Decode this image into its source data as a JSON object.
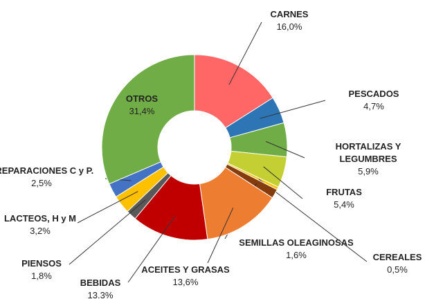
{
  "chart_data": {
    "type": "donut",
    "categories": [
      "CARNES",
      "PESCADOS",
      "HORTALIZAS Y LEGUMBRES",
      "FRUTAS",
      "CEREALES",
      "SEMILLAS OLEAGINOSAS",
      "ACEITES Y GRASAS",
      "BEBIDAS",
      "PIENSOS",
      "LACTEOS, H y M",
      "PREPARACIONES C y P.",
      "OTROS"
    ],
    "values": [
      16.0,
      4.7,
      5.9,
      5.4,
      0.5,
      1.6,
      13.6,
      13.3,
      1.8,
      3.2,
      2.5,
      31.4
    ],
    "value_labels": [
      "16,0%",
      "4,7%",
      "5,9%",
      "5,4%",
      "0,5%",
      "1,6%",
      "13,6%",
      "13.3%",
      "1,8%",
      "3,2%",
      "2,5%",
      "31,4%"
    ],
    "colors": [
      "#ff6666",
      "#2e75b6",
      "#70ad47",
      "#c4cf34",
      "#ffc000",
      "#843c0c",
      "#ed7d31",
      "#c00000",
      "#595959",
      "#ffc000",
      "#4472c4",
      "#70ad47"
    ]
  }
}
